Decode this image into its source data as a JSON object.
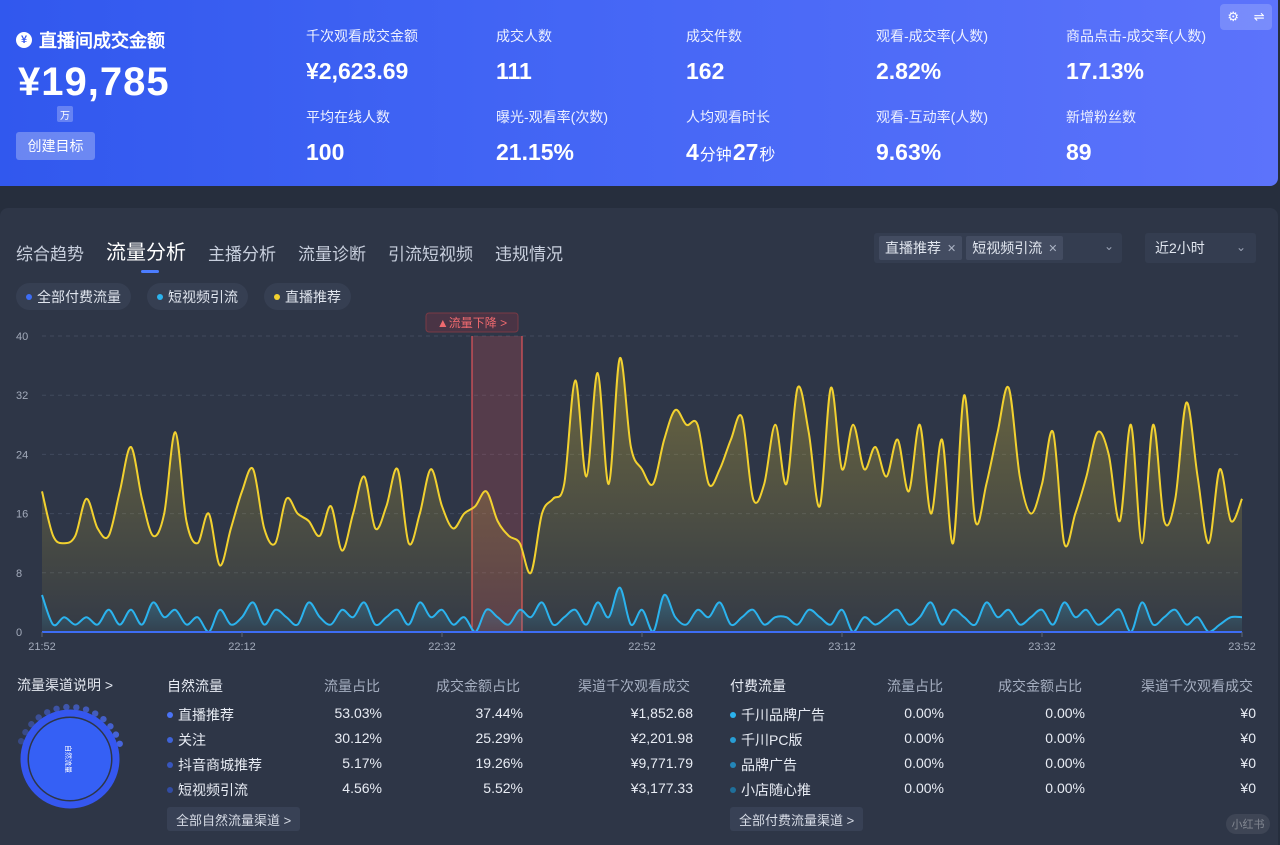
{
  "banner": {
    "gmv_title": "直播间成交金额",
    "gmv_value": "¥19,785",
    "gmv_unit": "万",
    "create_goal": "创建目标",
    "metrics": [
      {
        "label": "千次观看成交金额",
        "value": "¥2,623.69"
      },
      {
        "label": "成交人数",
        "value": "111"
      },
      {
        "label": "成交件数",
        "value": "162"
      },
      {
        "label": "观看-成交率(人数)",
        "value": "2.82%"
      },
      {
        "label": "商品点击-成交率(人数)",
        "value": "17.13%"
      },
      {
        "label": "平均在线人数",
        "value": "100"
      },
      {
        "label": "曝光-观看率(次数)",
        "value": "21.15%"
      },
      {
        "label": "人均观看时长",
        "value_parts": [
          "4",
          "分钟",
          "27",
          "秒"
        ]
      },
      {
        "label": "观看-互动率(人数)",
        "value": "9.63%"
      },
      {
        "label": "新增粉丝数",
        "value": "89"
      }
    ]
  },
  "tabs": [
    "综合趋势",
    "流量分析",
    "主播分析",
    "流量诊断",
    "引流短视频",
    "违规情况"
  ],
  "active_tab": 1,
  "filters": {
    "chips": [
      "直播推荐",
      "短视频引流"
    ],
    "time_range": "近2小时"
  },
  "legend": [
    {
      "name": "全部付费流量",
      "color": "#3d6df5"
    },
    {
      "name": "短视频引流",
      "color": "#2bb3ee"
    },
    {
      "name": "直播推荐",
      "color": "#f2d12f"
    }
  ],
  "chart_data": {
    "type": "line",
    "ylim": [
      0,
      40
    ],
    "yticks": [
      "0",
      "8",
      "16",
      "24",
      "32",
      "40"
    ],
    "xticks": [
      "21:52",
      "22:12",
      "22:32",
      "22:52",
      "23:12",
      "23:32",
      "23:52"
    ],
    "annotation": {
      "label": "▲流量下降 >",
      "x_start": "22:35",
      "x_end": "22:40"
    },
    "series": [
      {
        "name": "直播推荐",
        "color": "#f2d12f",
        "values": [
          19,
          13,
          12,
          13,
          18,
          14,
          13,
          19,
          25,
          18,
          13,
          16,
          27,
          15,
          12,
          16,
          9,
          14,
          19,
          22,
          14,
          12,
          18,
          16,
          15,
          13,
          17,
          11,
          16,
          21,
          14,
          17,
          22,
          12,
          16,
          22,
          17,
          14,
          16,
          17,
          19,
          15,
          13,
          12,
          8,
          16,
          18,
          20,
          34,
          21,
          35,
          20,
          37,
          25,
          22,
          20,
          26,
          30,
          28,
          28,
          20,
          22,
          26,
          29,
          18,
          20,
          28,
          20,
          33,
          27,
          17,
          33,
          22,
          28,
          22,
          25,
          21,
          26,
          19,
          28,
          16,
          26,
          12,
          32,
          15,
          20,
          27,
          33,
          21,
          16,
          20,
          27,
          12,
          16,
          21,
          27,
          24,
          15,
          28,
          12,
          28,
          15,
          18,
          31,
          21,
          12,
          22,
          15,
          18
        ]
      },
      {
        "name": "短视频引流",
        "color": "#2bb3ee",
        "values": [
          5,
          1,
          2,
          1,
          2,
          1,
          3,
          1,
          3,
          1,
          4,
          2,
          3,
          1,
          2,
          0,
          3,
          1,
          2,
          4,
          1,
          3,
          2,
          1,
          4,
          2,
          1,
          3,
          2,
          4,
          1,
          2,
          3,
          1,
          4,
          2,
          3,
          1,
          2,
          0,
          3,
          2,
          1,
          3,
          2,
          4,
          1,
          2,
          3,
          1,
          4,
          2,
          6,
          1,
          3,
          0,
          5,
          2,
          1,
          3,
          2,
          4,
          1,
          2,
          3,
          1,
          2,
          2,
          1,
          3,
          2,
          1,
          3,
          0,
          2,
          1,
          2,
          3,
          1,
          2,
          4,
          1,
          3,
          2,
          1,
          4,
          2,
          3,
          1,
          2,
          3,
          1,
          4,
          2,
          3,
          1,
          2,
          3,
          0,
          4,
          1,
          2,
          3,
          1,
          2,
          0,
          1,
          2,
          2
        ]
      },
      {
        "name": "全部付费流量",
        "color": "#3d6df5",
        "values": [
          0,
          0,
          0,
          0,
          0,
          0,
          0,
          0,
          0,
          0,
          0,
          0,
          0,
          0,
          0,
          0,
          0,
          0,
          0,
          0,
          0,
          0,
          0,
          0,
          0,
          0,
          0,
          0,
          0,
          0,
          0,
          0,
          0,
          0,
          0,
          0,
          0,
          0,
          0,
          0,
          0,
          0,
          0,
          0,
          0,
          0,
          0,
          0,
          0,
          0,
          0,
          0,
          0,
          0,
          0,
          0,
          0,
          0,
          0,
          0,
          0,
          0,
          0,
          0,
          0,
          0,
          0,
          0,
          0,
          0,
          0,
          0,
          0,
          0,
          0,
          0,
          0,
          0,
          0,
          0,
          0,
          0,
          0,
          0,
          0,
          0,
          0,
          0,
          0,
          0,
          0,
          0,
          0,
          0,
          0,
          0,
          0,
          0,
          0,
          0,
          0,
          0,
          0,
          0,
          0,
          0,
          0,
          0,
          0,
          0
        ]
      }
    ]
  },
  "channel_explain": "流量渠道说明 >",
  "donut_center_label": "自然流量",
  "natural_table": {
    "headers": [
      "自然流量",
      "流量占比",
      "成交金额占比",
      "渠道千次观看成交"
    ],
    "rows": [
      {
        "name": "直播推荐",
        "share": "53.03%",
        "gmv_share": "37.44%",
        "gpm": "¥1,852.68",
        "color": "#4a73f6"
      },
      {
        "name": "关注",
        "share": "30.12%",
        "gmv_share": "25.29%",
        "gpm": "¥2,201.98",
        "color": "#3f63d8"
      },
      {
        "name": "抖音商城推荐",
        "share": "5.17%",
        "gmv_share": "19.26%",
        "gpm": "¥9,771.79",
        "color": "#3856bd"
      },
      {
        "name": "短视频引流",
        "share": "4.56%",
        "gmv_share": "5.52%",
        "gpm": "¥3,177.33",
        "color": "#324ca3"
      }
    ],
    "link": "全部自然流量渠道 >"
  },
  "paid_table": {
    "headers": [
      "付费流量",
      "流量占比",
      "成交金额占比",
      "渠道千次观看成交"
    ],
    "rows": [
      {
        "name": "千川品牌广告",
        "share": "0.00%",
        "gmv_share": "0.00%",
        "gpm": "¥0",
        "color": "#2bb3ee"
      },
      {
        "name": "千川PC版",
        "share": "0.00%",
        "gmv_share": "0.00%",
        "gpm": "¥0",
        "color": "#289dd4"
      },
      {
        "name": "品牌广告",
        "share": "0.00%",
        "gmv_share": "0.00%",
        "gpm": "¥0",
        "color": "#2386b8"
      },
      {
        "name": "小店随心推",
        "share": "0.00%",
        "gmv_share": "0.00%",
        "gpm": "¥0",
        "color": "#1f6f9a"
      }
    ],
    "link": "全部付费流量渠道 >"
  },
  "icons": {
    "settings": "gear-icon",
    "swap": "swap-icon",
    "currency": "yen-icon"
  },
  "watermark": "小红书"
}
